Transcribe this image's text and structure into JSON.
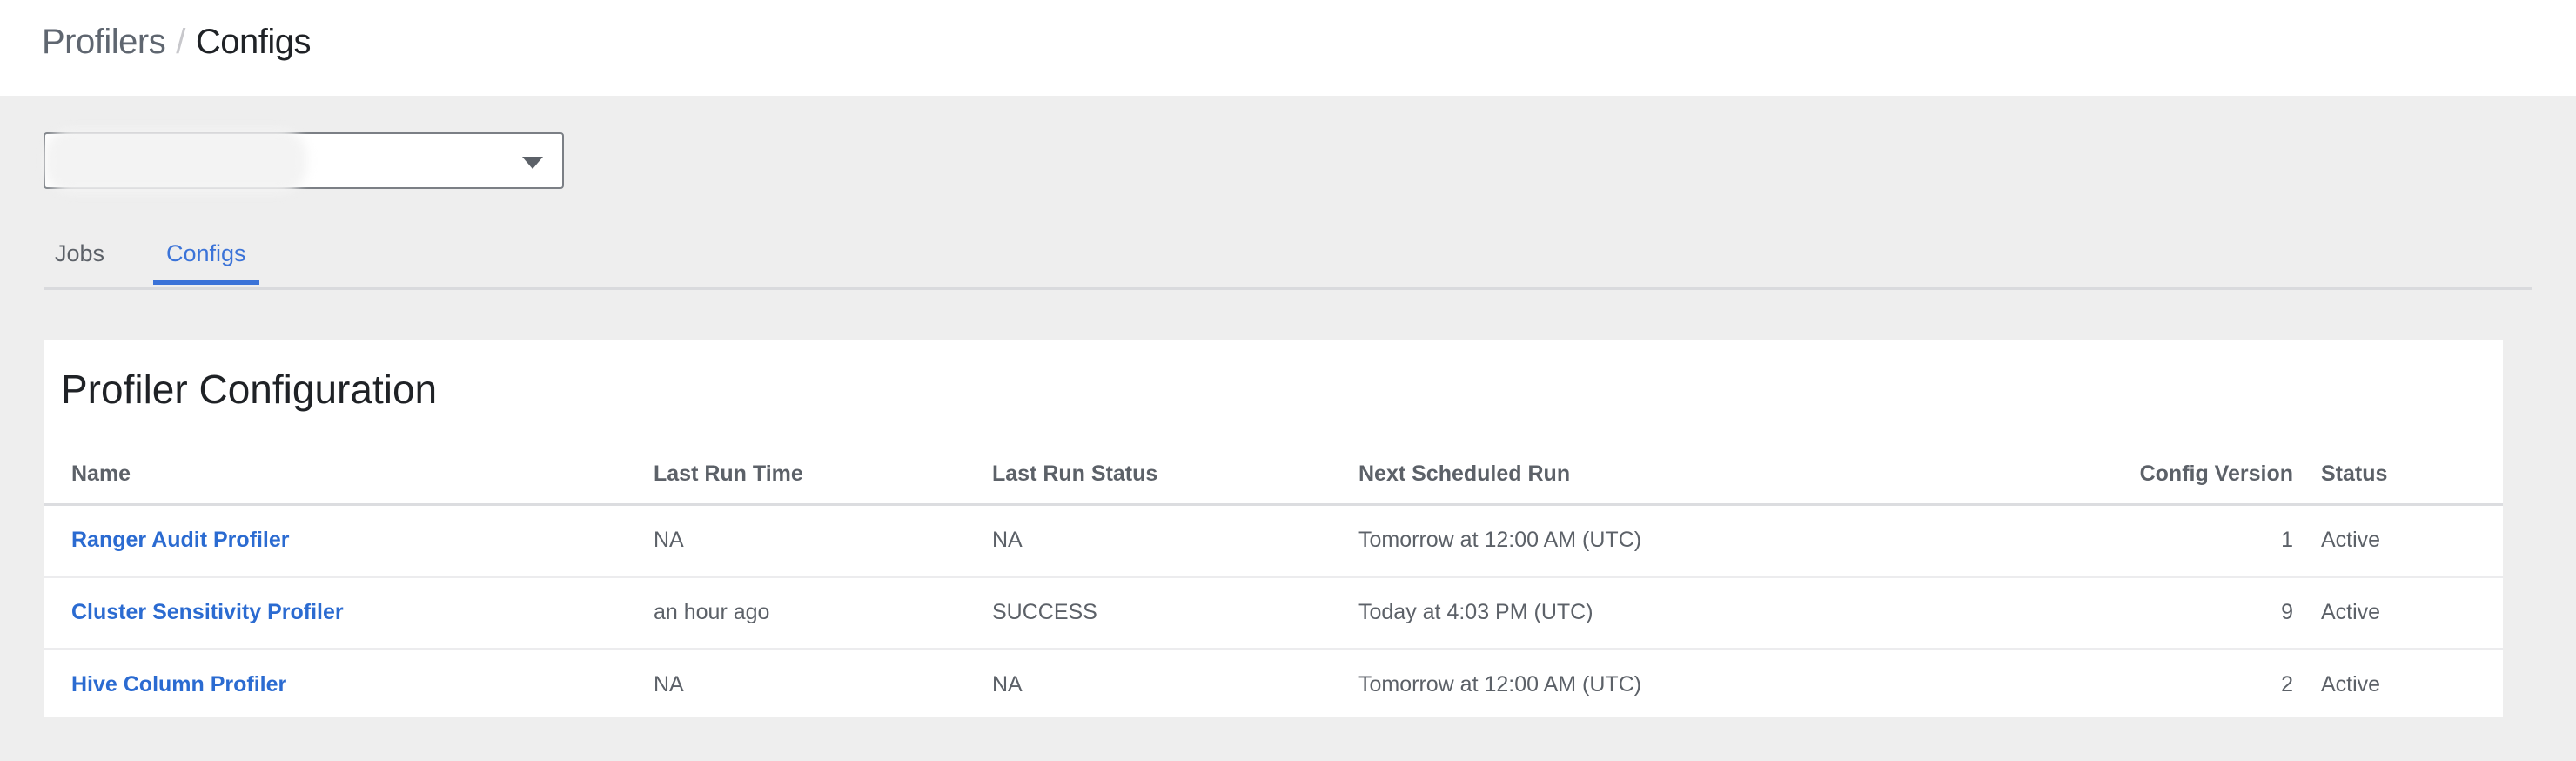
{
  "breadcrumb": {
    "parent": "Profilers",
    "separator": "/",
    "current": "Configs"
  },
  "cluster_select": {
    "value": "",
    "redacted": true,
    "icon": "caret-down-icon"
  },
  "tabs": [
    {
      "label": "Jobs",
      "active": false
    },
    {
      "label": "Configs",
      "active": true
    }
  ],
  "colors": {
    "accent": "#3b73d8",
    "link": "#2b6bd1",
    "background": "#eeeeee"
  },
  "card": {
    "title": "Profiler Configuration",
    "columns": [
      "Name",
      "Last Run Time",
      "Last Run Status",
      "Next Scheduled Run",
      "Config Version",
      "Status"
    ],
    "rows": [
      [
        "Ranger Audit Profiler",
        "NA",
        "NA",
        "Tomorrow at 12:00 AM (UTC)",
        "1",
        "Active"
      ],
      [
        "Cluster Sensitivity Profiler",
        "an hour ago",
        "SUCCESS",
        "Today at 4:03 PM (UTC)",
        "9",
        "Active"
      ],
      [
        "Hive Column Profiler",
        "NA",
        "NA",
        "Tomorrow at 12:00 AM (UTC)",
        "2",
        "Active"
      ]
    ]
  }
}
